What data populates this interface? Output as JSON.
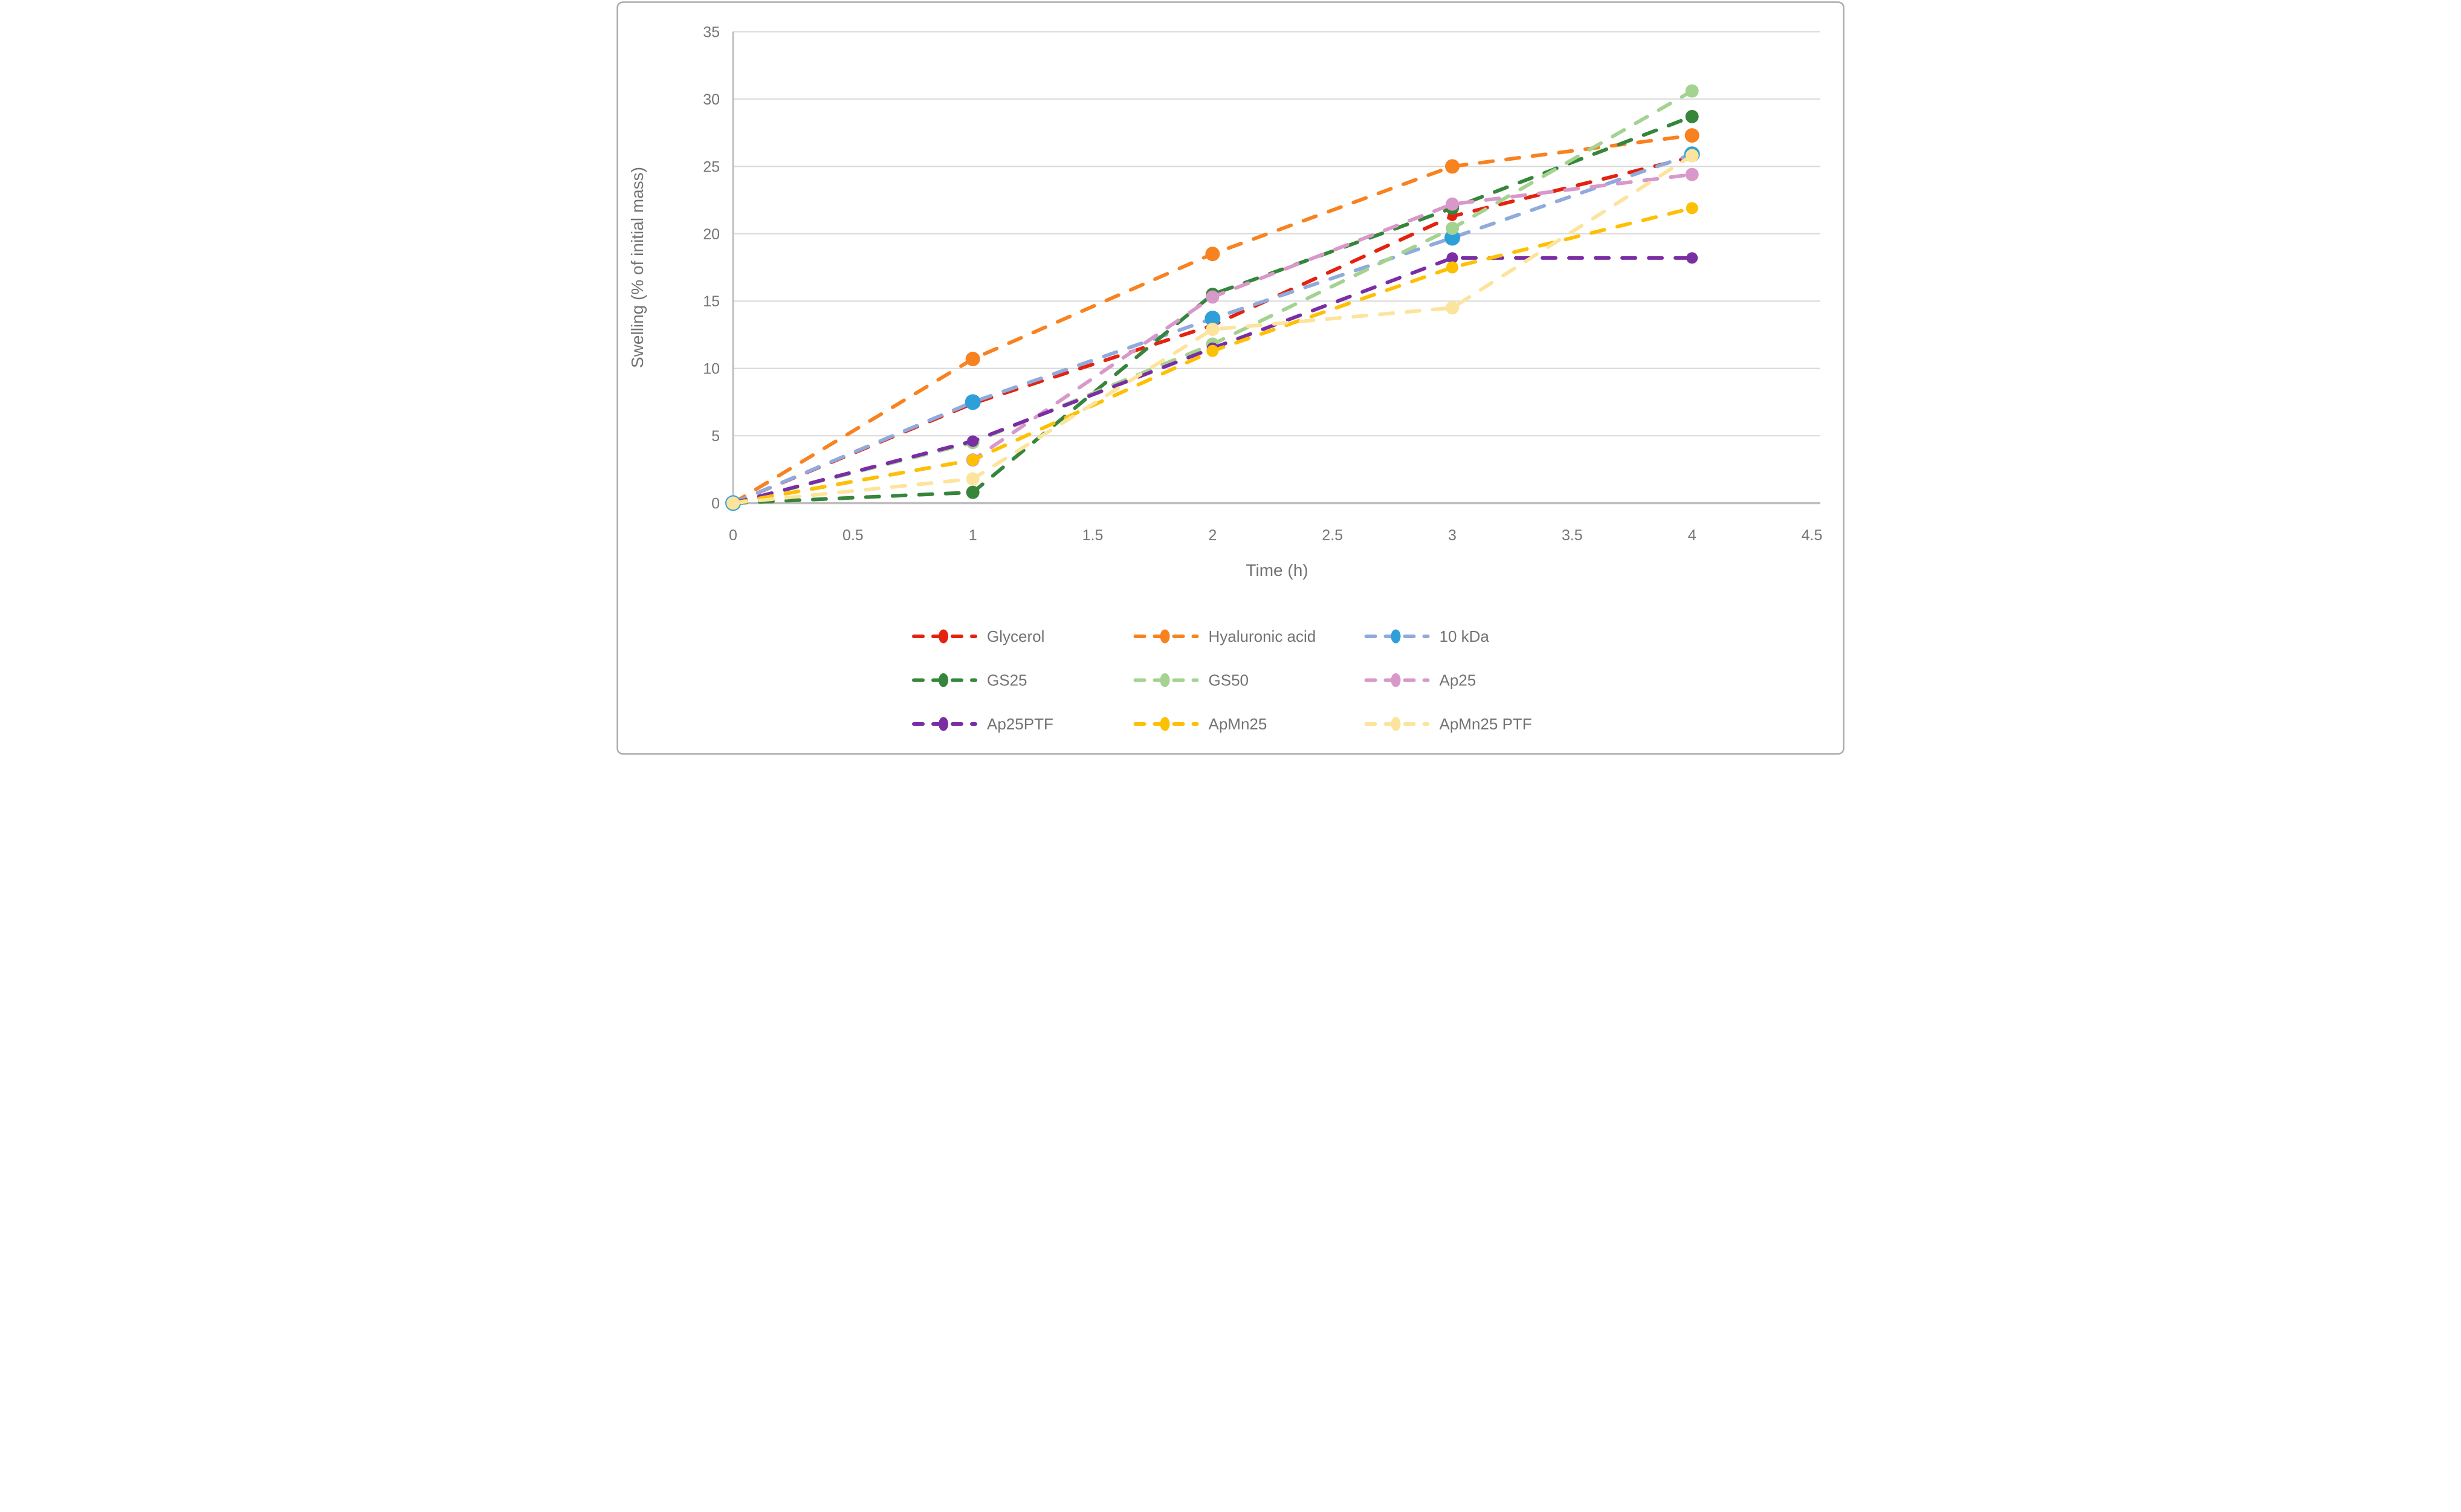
{
  "figure": {
    "background": "#FFFFFF",
    "border_color": "#ABABAB"
  },
  "chart_data": {
    "type": "line",
    "title": "",
    "xlabel": "Time (h)",
    "ylabel": "Swelling (% of initial mass)",
    "x": [
      0,
      1,
      2,
      3,
      4
    ],
    "xlim": [
      0,
      4.5
    ],
    "ylim": [
      0,
      35
    ],
    "x_tick_labels": [
      "0",
      "0.5",
      "1",
      "1.5",
      "2",
      "2.5",
      "3",
      "3.5",
      "4",
      "4.5"
    ],
    "x_tick_values": [
      0,
      0.5,
      1,
      1.5,
      2,
      2.5,
      3,
      3.5,
      4,
      4.5
    ],
    "y_tick_labels": [
      "0",
      "5",
      "10",
      "15",
      "20",
      "25",
      "30",
      "35"
    ],
    "y_tick_values": [
      0,
      5,
      10,
      15,
      20,
      25,
      30,
      35
    ],
    "grid": "horizontal",
    "line_style": "dashed",
    "legend_position": "bottom",
    "legend_columns": 3,
    "grid_color": "#D9D9D9",
    "axis_color": "#BFBFBF",
    "tick_label_color": "#767676",
    "axis_title_color": "#737373",
    "series": [
      {
        "name": "Glycerol",
        "color": "#E3220F",
        "marker_color": "#E3220F",
        "marker_size": 16,
        "values": [
          0,
          7.4,
          13.2,
          21.3,
          25.7
        ]
      },
      {
        "name": "Hyaluronic acid",
        "color": "#F8821F",
        "marker_color": "#F8821F",
        "marker_size": 24,
        "values": [
          0,
          10.7,
          18.5,
          25.0,
          27.3
        ]
      },
      {
        "name": "10 kDa",
        "color": "#8FAADC",
        "marker_color": "#2E9FD9",
        "marker_size": 26,
        "values": [
          0,
          7.5,
          13.7,
          19.7,
          25.9
        ]
      },
      {
        "name": "GS25",
        "color": "#35853A",
        "marker_color": "#35853A",
        "marker_size": 22,
        "values": [
          0,
          0.8,
          15.5,
          21.9,
          28.7
        ]
      },
      {
        "name": "GS50",
        "color": "#A4D291",
        "marker_color": "#A4D291",
        "marker_size": 22,
        "values": [
          0,
          4.5,
          11.8,
          20.4,
          30.6
        ]
      },
      {
        "name": "Ap25",
        "color": "#D898C9",
        "marker_color": "#D898C9",
        "marker_size": 22,
        "values": [
          0,
          3.2,
          15.3,
          22.2,
          24.4
        ]
      },
      {
        "name": "Ap25PTF",
        "color": "#7A2EA3",
        "marker_color": "#7A2EA3",
        "marker_size": 19,
        "values": [
          0,
          4.6,
          11.5,
          18.2,
          18.2
        ]
      },
      {
        "name": "ApMn25",
        "color": "#FDC002",
        "marker_color": "#FDC002",
        "marker_size": 20,
        "values": [
          0,
          3.2,
          11.3,
          17.5,
          21.9
        ]
      },
      {
        "name": "ApMn25 PTF",
        "color": "#FCE49C",
        "marker_color": "#FCE49C",
        "marker_size": 22,
        "values": [
          0,
          1.8,
          12.9,
          14.5,
          25.8
        ]
      }
    ]
  }
}
